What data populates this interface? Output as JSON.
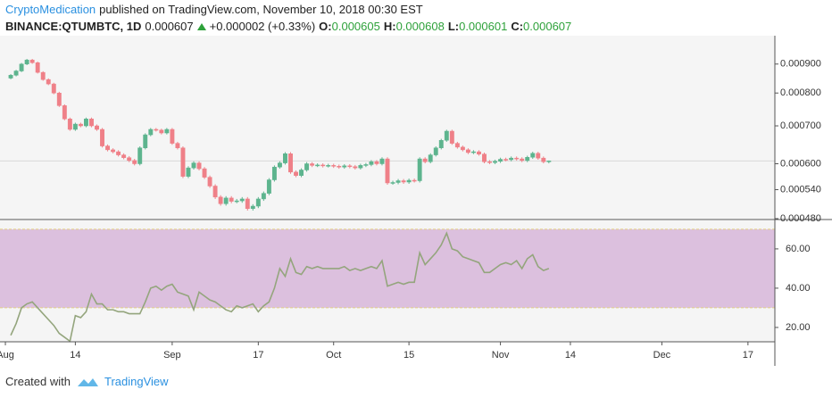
{
  "header": {
    "author": "CryptoMedication",
    "published": "published on TradingView.com, November 10, 2018 00:30 EST",
    "symbol": "BINANCE:QTUMBTC, 1D",
    "last": "0.000607",
    "change": "+0.000002 (+0.33%)",
    "ohlc": [
      {
        "key": "O:",
        "value": "0.000605"
      },
      {
        "key": "H:",
        "value": "0.000608"
      },
      {
        "key": "L:",
        "value": "0.000601"
      },
      {
        "key": "C:",
        "value": "0.000607"
      }
    ]
  },
  "footer": {
    "created": "Created with",
    "brand": "TradingView"
  },
  "chart_data": {
    "type": "candlestick",
    "log": true,
    "up_color": "#5db48e",
    "down_color": "#ef8088",
    "background": "#f5f5f5",
    "x": [
      "2018-08-02",
      "2018-08-03",
      "2018-08-04",
      "2018-08-05",
      "2018-08-06",
      "2018-08-07",
      "2018-08-08",
      "2018-08-09",
      "2018-08-10",
      "2018-08-11",
      "2018-08-12",
      "2018-08-13",
      "2018-08-14",
      "2018-08-15",
      "2018-08-16",
      "2018-08-17",
      "2018-08-18",
      "2018-08-19",
      "2018-08-20",
      "2018-08-21",
      "2018-08-22",
      "2018-08-23",
      "2018-08-24",
      "2018-08-25",
      "2018-08-26",
      "2018-08-27",
      "2018-08-28",
      "2018-08-29",
      "2018-08-30",
      "2018-08-31",
      "2018-09-01",
      "2018-09-02",
      "2018-09-03",
      "2018-09-04",
      "2018-09-05",
      "2018-09-06",
      "2018-09-07",
      "2018-09-08",
      "2018-09-09",
      "2018-09-10",
      "2018-09-11",
      "2018-09-12",
      "2018-09-13",
      "2018-09-14",
      "2018-09-15",
      "2018-09-16",
      "2018-09-17",
      "2018-09-18",
      "2018-09-19",
      "2018-09-20",
      "2018-09-21",
      "2018-09-22",
      "2018-09-23",
      "2018-09-24",
      "2018-09-25",
      "2018-09-26",
      "2018-09-27",
      "2018-09-28",
      "2018-09-29",
      "2018-09-30",
      "2018-10-01",
      "2018-10-02",
      "2018-10-03",
      "2018-10-04",
      "2018-10-05",
      "2018-10-06",
      "2018-10-07",
      "2018-10-08",
      "2018-10-09",
      "2018-10-10",
      "2018-10-11",
      "2018-10-12",
      "2018-10-13",
      "2018-10-14",
      "2018-10-15",
      "2018-10-16",
      "2018-10-17",
      "2018-10-18",
      "2018-10-19",
      "2018-10-20",
      "2018-10-21",
      "2018-10-22",
      "2018-10-23",
      "2018-10-24",
      "2018-10-25",
      "2018-10-26",
      "2018-10-27",
      "2018-10-28",
      "2018-10-29",
      "2018-10-30",
      "2018-10-31",
      "2018-11-01",
      "2018-11-02",
      "2018-11-03",
      "2018-11-04",
      "2018-11-05",
      "2018-11-06",
      "2018-11-07",
      "2018-11-08",
      "2018-11-09",
      "2018-11-10"
    ],
    "open": [
      0.00085,
      0.00086,
      0.000875,
      0.0009,
      0.000915,
      0.000905,
      0.00087,
      0.000845,
      0.00083,
      0.0008,
      0.00076,
      0.00072,
      0.00069,
      0.000705,
      0.0007,
      0.00072,
      0.0007,
      0.00069,
      0.000645,
      0.000635,
      0.00063,
      0.000622,
      0.000615,
      0.000608,
      0.0006,
      0.00064,
      0.000675,
      0.00069,
      0.000688,
      0.00068,
      0.00069,
      0.000652,
      0.00064,
      0.00057,
      0.00059,
      0.000602,
      0.000588,
      0.000568,
      0.000548,
      0.000524,
      0.00051,
      0.000522,
      0.000515,
      0.000516,
      0.00052,
      0.0005,
      0.000505,
      0.00052,
      0.000532,
      0.000562,
      0.000592,
      0.000602,
      0.000625,
      0.00058,
      0.000572,
      0.000585,
      0.0006,
      0.000596,
      0.000597,
      0.000595,
      0.000596,
      0.000594,
      0.000592,
      0.000595,
      0.000593,
      0.00059,
      0.000596,
      0.000598,
      0.000605,
      0.0006,
      0.000612,
      0.000555,
      0.000556,
      0.00056,
      0.000557,
      0.000561,
      0.00056,
      0.000612,
      0.000605,
      0.000622,
      0.00064,
      0.00066,
      0.000685,
      0.000652,
      0.000642,
      0.000635,
      0.000628,
      0.00063,
      0.000624,
      0.000605,
      0.000603,
      0.000606,
      0.000611,
      0.00061,
      0.000614,
      0.000612,
      0.000608,
      0.000616,
      0.000626,
      0.000614,
      0.000605
    ],
    "high": [
      0.000864,
      0.000879,
      0.000904,
      0.000919,
      0.000919,
      0.000909,
      0.000874,
      0.000849,
      0.000834,
      0.000804,
      0.000764,
      0.000724,
      0.000709,
      0.000709,
      0.000724,
      0.000724,
      0.000704,
      0.000694,
      0.000649,
      0.000639,
      0.000634,
      0.000626,
      0.000619,
      0.000612,
      0.000644,
      0.000679,
      0.000694,
      0.000694,
      0.000692,
      0.000694,
      0.000694,
      0.000656,
      0.000644,
      0.000594,
      0.000606,
      0.000606,
      0.000592,
      0.000572,
      0.000552,
      0.000528,
      0.000526,
      0.000526,
      0.00052,
      0.000524,
      0.000524,
      0.000509,
      0.000524,
      0.000536,
      0.000566,
      0.000596,
      0.000606,
      0.000629,
      0.000629,
      0.000584,
      0.000589,
      0.000604,
      0.000604,
      0.000601,
      0.000601,
      0.0006,
      0.0006,
      0.000598,
      0.000599,
      0.000599,
      0.000597,
      0.0006,
      0.000602,
      0.000609,
      0.000609,
      0.000616,
      0.000616,
      0.00056,
      0.000564,
      0.000564,
      0.000565,
      0.000565,
      0.000616,
      0.000616,
      0.000626,
      0.000644,
      0.000664,
      0.000689,
      0.000689,
      0.000656,
      0.000646,
      0.000639,
      0.000634,
      0.000634,
      0.000628,
      0.000609,
      0.00061,
      0.000615,
      0.000615,
      0.000618,
      0.000618,
      0.000616,
      0.00062,
      0.00063,
      0.00063,
      0.000618,
      0.000608
    ],
    "low": [
      0.000846,
      0.000856,
      0.000871,
      0.000896,
      0.000901,
      0.000866,
      0.000841,
      0.000826,
      0.000796,
      0.000756,
      0.000716,
      0.000686,
      0.000686,
      0.000696,
      0.000696,
      0.000696,
      0.000686,
      0.000641,
      0.000631,
      0.000626,
      0.000618,
      0.000611,
      0.000604,
      0.000596,
      0.000596,
      0.000636,
      0.000671,
      0.000684,
      0.000676,
      0.000676,
      0.000648,
      0.000636,
      0.000566,
      0.000566,
      0.000586,
      0.000584,
      0.000564,
      0.000544,
      0.00052,
      0.000506,
      0.000506,
      0.000511,
      0.000511,
      0.000512,
      0.000496,
      0.000496,
      0.000501,
      0.000516,
      0.000528,
      0.000558,
      0.000588,
      0.000598,
      0.000576,
      0.000568,
      0.000568,
      0.000581,
      0.000592,
      0.000592,
      0.000591,
      0.000591,
      0.00059,
      0.000588,
      0.000588,
      0.000589,
      0.000586,
      0.000586,
      0.000592,
      0.000594,
      0.000596,
      0.000596,
      0.000551,
      0.000551,
      0.000552,
      0.000553,
      0.000553,
      0.000556,
      0.000556,
      0.000601,
      0.000601,
      0.000618,
      0.000636,
      0.000656,
      0.000648,
      0.000638,
      0.000631,
      0.000624,
      0.000624,
      0.00062,
      0.000601,
      0.000599,
      0.000599,
      0.000602,
      0.000606,
      0.000606,
      0.000608,
      0.000604,
      0.000604,
      0.000612,
      0.00061,
      0.000601,
      0.000601
    ],
    "close": [
      0.00086,
      0.000875,
      0.0009,
      0.000915,
      0.000905,
      0.00087,
      0.000845,
      0.00083,
      0.0008,
      0.00076,
      0.00072,
      0.00069,
      0.000705,
      0.0007,
      0.00072,
      0.0007,
      0.00069,
      0.000645,
      0.000635,
      0.00063,
      0.000622,
      0.000615,
      0.000608,
      0.0006,
      0.00064,
      0.000675,
      0.00069,
      0.000688,
      0.00068,
      0.00069,
      0.000652,
      0.00064,
      0.00057,
      0.00059,
      0.000602,
      0.000588,
      0.000568,
      0.000548,
      0.000524,
      0.00051,
      0.000522,
      0.000515,
      0.000516,
      0.00052,
      0.0005,
      0.000505,
      0.00052,
      0.000532,
      0.000562,
      0.000592,
      0.000602,
      0.000625,
      0.00058,
      0.000572,
      0.000585,
      0.0006,
      0.000596,
      0.000597,
      0.000595,
      0.000596,
      0.000594,
      0.000592,
      0.000595,
      0.000593,
      0.00059,
      0.000596,
      0.000598,
      0.000605,
      0.0006,
      0.000612,
      0.000555,
      0.000556,
      0.00056,
      0.000557,
      0.000561,
      0.00056,
      0.000612,
      0.000605,
      0.000622,
      0.00064,
      0.00066,
      0.000685,
      0.000652,
      0.000642,
      0.000635,
      0.000628,
      0.00063,
      0.000624,
      0.000605,
      0.000603,
      0.000606,
      0.000611,
      0.00061,
      0.000614,
      0.000612,
      0.000608,
      0.000616,
      0.000626,
      0.000614,
      0.000605,
      0.000607
    ],
    "xlim": [
      "2018-07-31",
      "2018-12-22"
    ],
    "xticks": [
      {
        "value": "2018-08-01",
        "label": "Aug"
      },
      {
        "value": "2018-08-14",
        "label": "14"
      },
      {
        "value": "2018-09-01",
        "label": "Sep"
      },
      {
        "value": "2018-09-17",
        "label": "17"
      },
      {
        "value": "2018-10-01",
        "label": "Oct"
      },
      {
        "value": "2018-10-15",
        "label": "15"
      },
      {
        "value": "2018-11-01",
        "label": "Nov"
      },
      {
        "value": "2018-11-14",
        "label": "14"
      },
      {
        "value": "2018-12-01",
        "label": "Dec"
      },
      {
        "value": "2018-12-17",
        "label": "17"
      }
    ],
    "ylim": [
      0.00048,
      0.00101
    ],
    "yticks": [
      {
        "value": 0.0009,
        "label": "0.000900"
      },
      {
        "value": 0.0008,
        "label": "0.000800"
      },
      {
        "value": 0.0007,
        "label": "0.000700"
      },
      {
        "value": 0.0006,
        "label": "0.000600"
      },
      {
        "value": 0.00054,
        "label": "0.000540"
      },
      {
        "value": 0.00048,
        "label": "0.000480"
      }
    ],
    "indicator": {
      "type": "line",
      "color": "#94a57d",
      "band_color": "#dcc0de",
      "band_line_color": "#e3cf85",
      "values": [
        16,
        22,
        30,
        32,
        33,
        30,
        27,
        24,
        21,
        17,
        15,
        13,
        26,
        25,
        28,
        37,
        32,
        32,
        29,
        29,
        28,
        28,
        27,
        27,
        27,
        33,
        40,
        41,
        39,
        41,
        42,
        38,
        37,
        36,
        29,
        38,
        36,
        34,
        33,
        31,
        29,
        28,
        31,
        30,
        31,
        32,
        28,
        31,
        33,
        40,
        50,
        46,
        55,
        48,
        47,
        51,
        50,
        51,
        50,
        50,
        50,
        50,
        51,
        49,
        50,
        49,
        50,
        51,
        50,
        54,
        41,
        42,
        43,
        42,
        43,
        43,
        58,
        52,
        55,
        58,
        62,
        68,
        60,
        59,
        56,
        55,
        54,
        53,
        48,
        48,
        50,
        52,
        53,
        52,
        54,
        50,
        55,
        57,
        51,
        49,
        50
      ],
      "band": [
        30,
        70
      ],
      "ylim": [
        12.7,
        74.5
      ],
      "yticks": [
        {
          "value": 60,
          "label": "60.00"
        },
        {
          "value": 40,
          "label": "40.00"
        },
        {
          "value": 20,
          "label": "20.00"
        }
      ]
    }
  }
}
